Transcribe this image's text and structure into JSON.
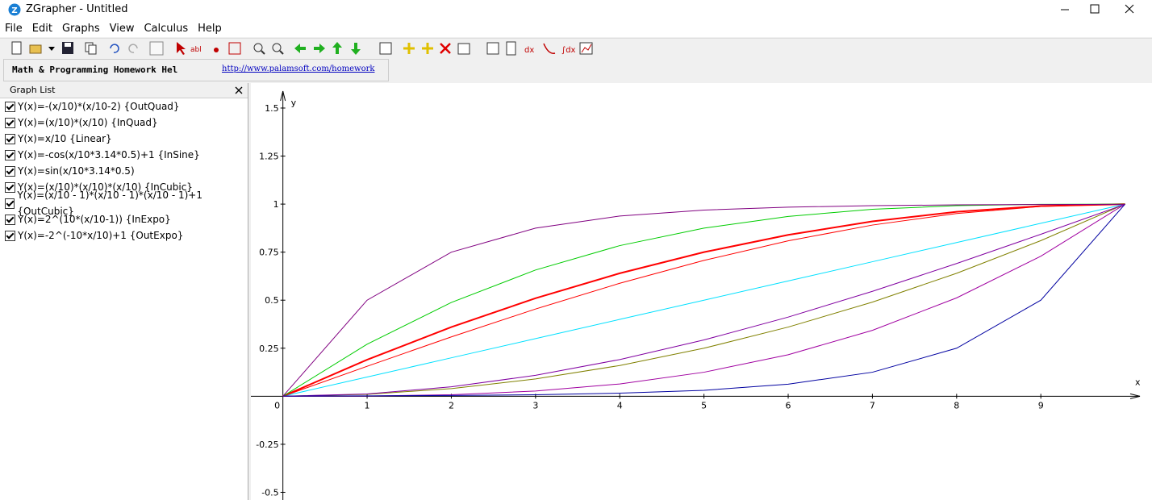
{
  "window": {
    "title": "ZGrapher - Untitled"
  },
  "menu": [
    "File",
    "Edit",
    "Graphs",
    "View",
    "Calculus",
    "Help"
  ],
  "address_bar": {
    "text": "Math & Programming Homework Hel",
    "link": "http://www.palamsoft.com/homework"
  },
  "graph_list": {
    "header": "Graph List",
    "items": [
      "Y(x)=-(x/10)*(x/10-2) {OutQuad}",
      "Y(x)=(x/10)*(x/10) {InQuad}",
      "Y(x)=x/10 {Linear}",
      "Y(x)=-cos(x/10*3.14*0.5)+1 {InSine}",
      "Y(x)=sin(x/10*3.14*0.5)",
      "Y(x)=(x/10)*(x/10)*(x/10) {InCubic}",
      "Y(x)=(x/10 - 1)*(x/10 - 1)*(x/10 - 1)+1 {OutCubic}",
      "Y(x)=2^(10*(x/10-1)) {InExpo}",
      "Y(x)=-2^(-10*x/10)+1 {OutExpo}"
    ]
  },
  "chart_data": {
    "type": "line",
    "x_label": "x",
    "y_label": "y",
    "x": [
      0,
      1,
      2,
      3,
      4,
      5,
      6,
      7,
      8,
      9,
      10
    ],
    "series": [
      {
        "color": "#ff0000",
        "values": [
          0,
          0.19,
          0.36,
          0.51,
          0.64,
          0.75,
          0.84,
          0.91,
          0.96,
          0.99,
          1
        ]
      },
      {
        "color": "#808000",
        "values": [
          0,
          0.01,
          0.04,
          0.09,
          0.16,
          0.25,
          0.36,
          0.49,
          0.64,
          0.81,
          1
        ]
      },
      {
        "color": "#00e0ff",
        "values": [
          0,
          0.1,
          0.2,
          0.3,
          0.4,
          0.5,
          0.6,
          0.7,
          0.8,
          0.9,
          1
        ]
      },
      {
        "color": "#8000a0",
        "values": [
          0,
          0.012,
          0.049,
          0.109,
          0.191,
          0.293,
          0.412,
          0.546,
          0.691,
          0.843,
          0.999
        ]
      },
      {
        "color": "#ff0000",
        "values": [
          0,
          0.156,
          0.309,
          0.454,
          0.588,
          0.707,
          0.809,
          0.891,
          0.951,
          0.988,
          1
        ]
      },
      {
        "color": "#a000a0",
        "values": [
          0,
          0.001,
          0.008,
          0.027,
          0.064,
          0.125,
          0.216,
          0.343,
          0.512,
          0.729,
          1
        ]
      },
      {
        "color": "#00cc00",
        "values": [
          0,
          0.271,
          0.488,
          0.657,
          0.784,
          0.875,
          0.936,
          0.973,
          0.992,
          0.999,
          1
        ]
      },
      {
        "color": "#0000a0",
        "values": [
          0.001,
          0.002,
          0.004,
          0.008,
          0.016,
          0.031,
          0.063,
          0.125,
          0.25,
          0.5,
          1
        ]
      },
      {
        "color": "#800080",
        "values": [
          0,
          0.5,
          0.75,
          0.875,
          0.938,
          0.969,
          0.984,
          0.992,
          0.996,
          0.998,
          0.999
        ]
      }
    ],
    "xlim": [
      -0.38,
      10.32
    ],
    "ylim": [
      -0.54,
      1.63
    ],
    "xticks": [
      0,
      1,
      2,
      3,
      4,
      5,
      6,
      7,
      8,
      9
    ],
    "yticks": [
      -0.5,
      -0.25,
      0.25,
      0.5,
      0.75,
      1,
      1.25,
      1.5
    ]
  }
}
